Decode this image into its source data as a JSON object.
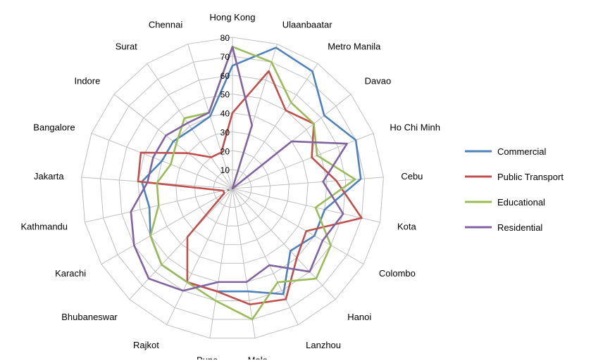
{
  "chart_data": {
    "type": "radar",
    "categories": [
      "Hong Kong",
      "Ulaanbaatar",
      "Metro Manila",
      "Davao",
      "Ho Chi Minh",
      "Cebu",
      "Kota",
      "Colombo",
      "Hanoi",
      "Lanzhou",
      "Male",
      "Pune",
      "Rajkot",
      "Bhubaneswar",
      "Karachi",
      "Kathmandu",
      "Jakarta",
      "Bangalore",
      "Indore",
      "Surat",
      "Chennai"
    ],
    "tick_labels": [
      "-",
      "10",
      "20",
      "30",
      "40",
      "50",
      "60",
      "70",
      "80"
    ],
    "rmax": 80,
    "grid": true,
    "legend_position": "right",
    "series": [
      {
        "name": "Commercial",
        "color": "#4F81BD",
        "values": [
          65,
          78,
          75,
          62,
          70,
          68,
          50,
          50,
          45,
          62,
          55,
          55,
          55,
          55,
          50,
          45,
          48,
          40,
          40,
          38,
          40
        ]
      },
      {
        "name": "Public Transport",
        "color": "#C0504D",
        "values": [
          40,
          65,
          50,
          55,
          45,
          55,
          70,
          45,
          50,
          65,
          62,
          55,
          55,
          35,
          5,
          5,
          50,
          52,
          30,
          20,
          20
        ]
      },
      {
        "name": "Educational",
        "color": "#9BBB59",
        "values": [
          75,
          70,
          55,
          55,
          48,
          65,
          45,
          60,
          65,
          55,
          70,
          60,
          55,
          55,
          50,
          40,
          40,
          35,
          38,
          45,
          42
        ]
      },
      {
        "name": "Residential",
        "color": "#8064A2",
        "values": [
          75,
          35,
          0,
          40,
          65,
          48,
          60,
          55,
          60,
          45,
          50,
          50,
          60,
          65,
          60,
          55,
          45,
          45,
          45,
          42,
          42
        ]
      }
    ]
  }
}
